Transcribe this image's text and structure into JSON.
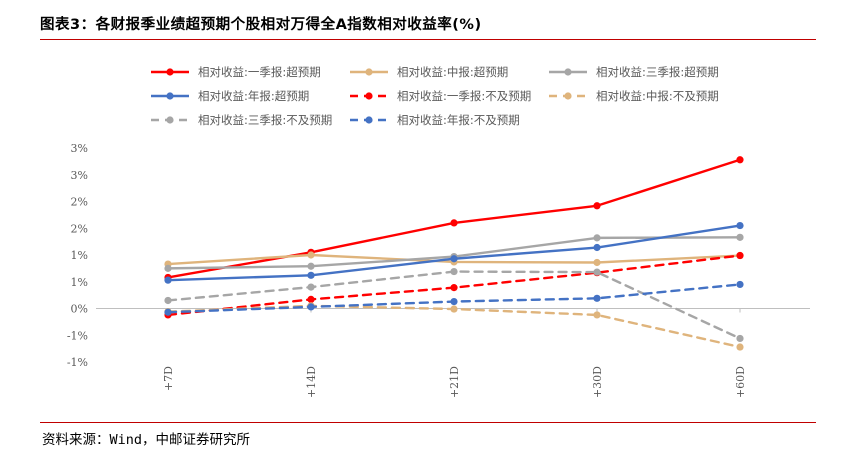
{
  "figure": {
    "title": "图表3：各财报季业绩超预期个股相对万得全A指数相对收益率(%)",
    "source": "资料来源：Wind，中邮证券研究所"
  },
  "colors": {
    "rule": "#c00000",
    "axis": "#bfbfbf"
  },
  "chart_data": {
    "type": "line",
    "title": "",
    "xlabel": "",
    "ylabel": "",
    "categories": [
      "+7D",
      "+14D",
      "+21D",
      "+30D",
      "+60D"
    ],
    "y_tick_values": [
      -1.0,
      -0.5,
      0.0,
      0.5,
      1.0,
      1.5,
      2.0,
      2.5,
      3.0
    ],
    "y_tick_labels": [
      "-1%",
      "-1%",
      "0%",
      "1%",
      "1%",
      "2%",
      "2%",
      "3%",
      "3%"
    ],
    "ylim": [
      -1.0,
      3.0
    ],
    "grid": false,
    "legend_position": "top",
    "series": [
      {
        "name": "相对收益:一季报:超预期",
        "color": "#ff0000",
        "dashed": false,
        "values": [
          0.58,
          1.05,
          1.6,
          1.92,
          2.78
        ]
      },
      {
        "name": "相对收益:中报:超预期",
        "color": "#dfb47c",
        "dashed": false,
        "values": [
          0.83,
          1.0,
          0.87,
          0.86,
          0.99
        ]
      },
      {
        "name": "相对收益:三季报:超预期",
        "color": "#a6a6a6",
        "dashed": false,
        "values": [
          0.75,
          0.79,
          0.97,
          1.32,
          1.33
        ]
      },
      {
        "name": "相对收益:年报:超预期",
        "color": "#4472c4",
        "dashed": false,
        "values": [
          0.53,
          0.62,
          0.93,
          1.14,
          1.55
        ]
      },
      {
        "name": "相对收益:一季报:不及预期",
        "color": "#ff0000",
        "dashed": true,
        "values": [
          -0.12,
          0.17,
          0.39,
          0.67,
          0.99
        ]
      },
      {
        "name": "相对收益:中报:不及预期",
        "color": "#dfb47c",
        "dashed": true,
        "values": [
          -0.06,
          0.05,
          -0.01,
          -0.12,
          -0.72
        ]
      },
      {
        "name": "相对收益:三季报:不及预期",
        "color": "#a6a6a6",
        "dashed": true,
        "values": [
          0.15,
          0.4,
          0.69,
          0.68,
          -0.56
        ]
      },
      {
        "name": "相对收益:年报:不及预期",
        "color": "#4472c4",
        "dashed": true,
        "values": [
          -0.07,
          0.03,
          0.13,
          0.19,
          0.45
        ]
      }
    ]
  }
}
